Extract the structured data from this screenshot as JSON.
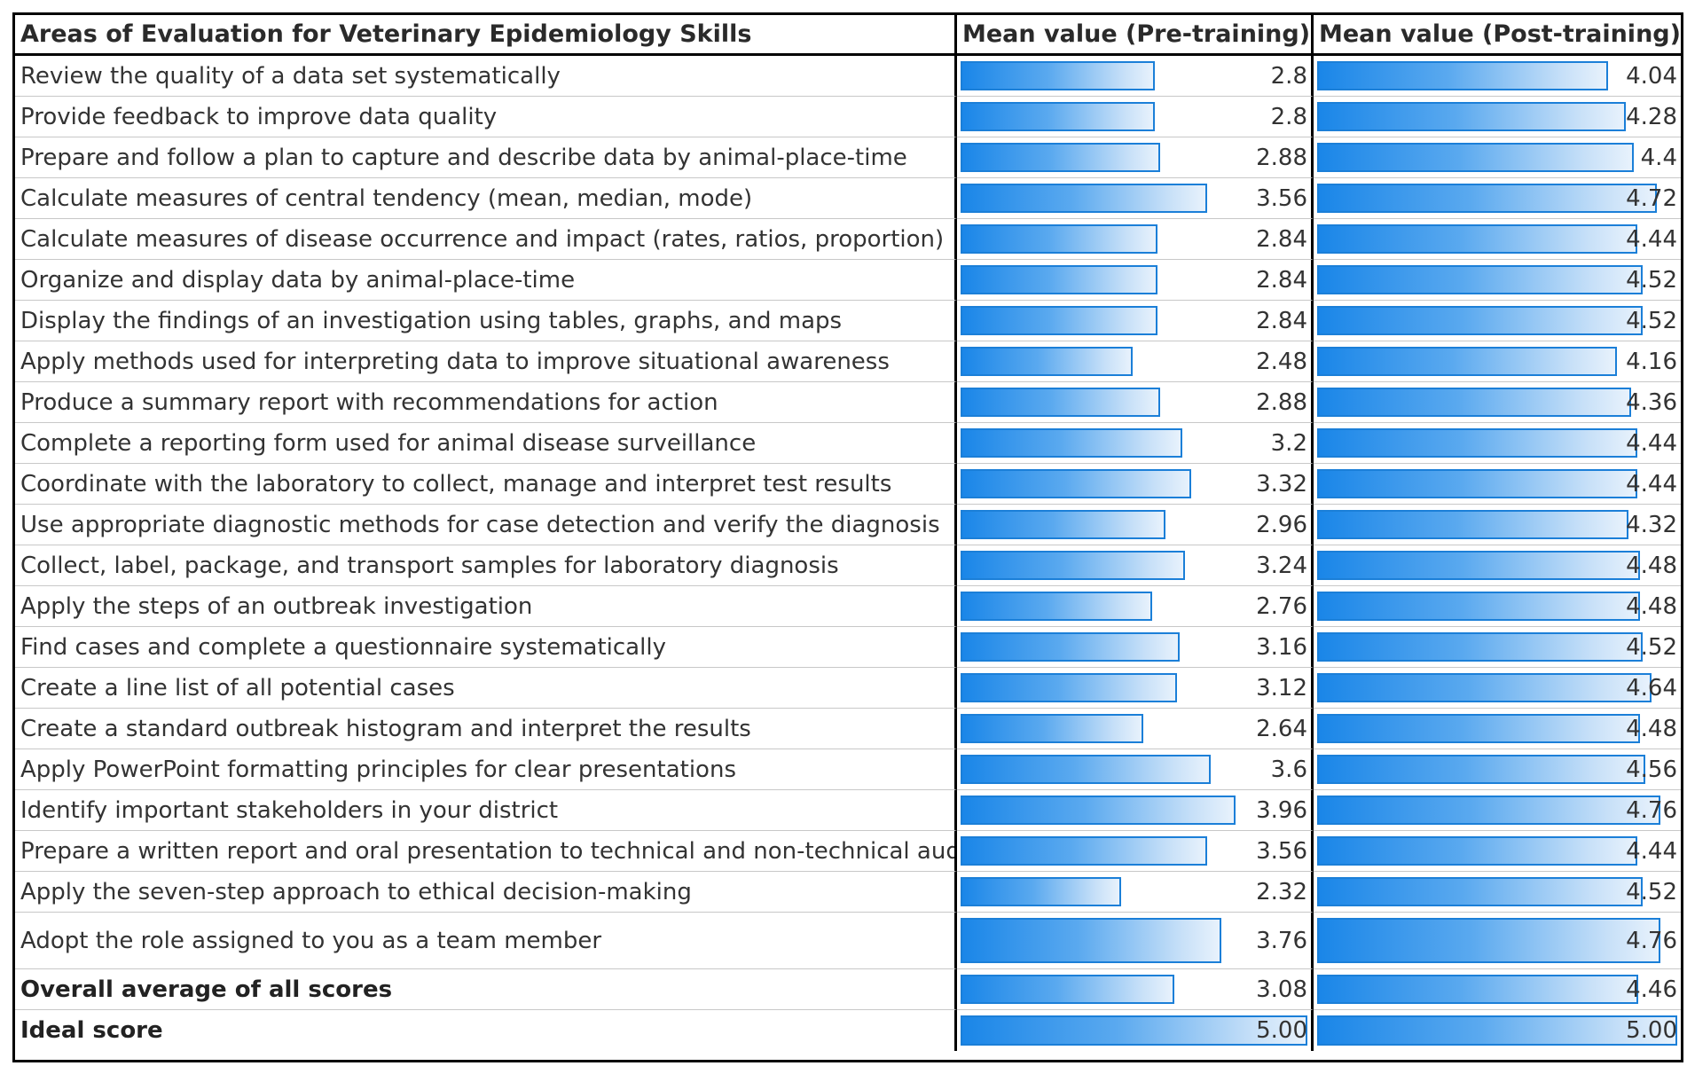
{
  "table": {
    "headers": {
      "area": "Areas of Evaluation for Veterinary Epidemiology Skills",
      "pre": "Mean value (Pre-training)",
      "post": "Mean value (Post-training)"
    }
  },
  "chart_data": {
    "type": "table",
    "title": "Areas of Evaluation for Veterinary Epidemiology Skills",
    "value_range": [
      0,
      5
    ],
    "columns": [
      "Mean value (Pre-training)",
      "Mean value (Post-training)"
    ],
    "rows": [
      {
        "label": "Review the quality of a data set systematically",
        "pre": 2.8,
        "pre_text": "2.8",
        "post": 4.04,
        "post_text": "4.04"
      },
      {
        "label": "Provide feedback to improve data quality",
        "pre": 2.8,
        "pre_text": "2.8",
        "post": 4.28,
        "post_text": "4.28"
      },
      {
        "label": "Prepare and follow a plan to capture and describe data by animal-place-time",
        "pre": 2.88,
        "pre_text": "2.88",
        "post": 4.4,
        "post_text": "4.4"
      },
      {
        "label": "Calculate measures of central tendency (mean, median, mode)",
        "pre": 3.56,
        "pre_text": "3.56",
        "post": 4.72,
        "post_text": "4.72"
      },
      {
        "label": "Calculate measures of disease occurrence and impact (rates, ratios, proportion)",
        "pre": 2.84,
        "pre_text": "2.84",
        "post": 4.44,
        "post_text": "4.44"
      },
      {
        "label": "Organize and display data by animal-place-time",
        "pre": 2.84,
        "pre_text": "2.84",
        "post": 4.52,
        "post_text": "4.52"
      },
      {
        "label": "Display the findings of an investigation using tables, graphs, and maps",
        "pre": 2.84,
        "pre_text": "2.84",
        "post": 4.52,
        "post_text": "4.52"
      },
      {
        "label": "Apply methods used for interpreting data to improve situational awareness",
        "pre": 2.48,
        "pre_text": "2.48",
        "post": 4.16,
        "post_text": "4.16"
      },
      {
        "label": "Produce a summary report with recommendations for action",
        "pre": 2.88,
        "pre_text": "2.88",
        "post": 4.36,
        "post_text": "4.36"
      },
      {
        "label": "Complete a reporting form used for animal disease surveillance",
        "pre": 3.2,
        "pre_text": "3.2",
        "post": 4.44,
        "post_text": "4.44"
      },
      {
        "label": "Coordinate with the laboratory to collect, manage and interpret test results",
        "pre": 3.32,
        "pre_text": "3.32",
        "post": 4.44,
        "post_text": "4.44"
      },
      {
        "label": "Use appropriate diagnostic methods for case detection and verify the diagnosis",
        "pre": 2.96,
        "pre_text": "2.96",
        "post": 4.32,
        "post_text": "4.32"
      },
      {
        "label": "Collect, label, package, and transport samples for laboratory diagnosis",
        "pre": 3.24,
        "pre_text": "3.24",
        "post": 4.48,
        "post_text": "4.48"
      },
      {
        "label": "Apply the steps of an outbreak investigation",
        "pre": 2.76,
        "pre_text": "2.76",
        "post": 4.48,
        "post_text": "4.48"
      },
      {
        "label": "Find cases and complete a questionnaire systematically",
        "pre": 3.16,
        "pre_text": "3.16",
        "post": 4.52,
        "post_text": "4.52"
      },
      {
        "label": "Create a line list of all potential cases",
        "pre": 3.12,
        "pre_text": "3.12",
        "post": 4.64,
        "post_text": "4.64"
      },
      {
        "label": "Create a standard outbreak histogram and interpret the results",
        "pre": 2.64,
        "pre_text": "2.64",
        "post": 4.48,
        "post_text": "4.48"
      },
      {
        "label": "Apply PowerPoint formatting principles for clear presentations",
        "pre": 3.6,
        "pre_text": "3.6",
        "post": 4.56,
        "post_text": "4.56"
      },
      {
        "label": "Identify important stakeholders in your district",
        "pre": 3.96,
        "pre_text": "3.96",
        "post": 4.76,
        "post_text": "4.76"
      },
      {
        "label": "Prepare a written report and oral presentation to technical and non-technical audiences",
        "pre": 3.56,
        "pre_text": "3.56",
        "post": 4.44,
        "post_text": "4.44"
      },
      {
        "label": "Apply the seven-step approach to ethical decision-making",
        "pre": 2.32,
        "pre_text": "2.32",
        "post": 4.52,
        "post_text": "4.52"
      },
      {
        "label": "Adopt the role assigned to you as a team member",
        "pre": 3.76,
        "pre_text": "3.76",
        "post": 4.76,
        "post_text": "4.76"
      },
      {
        "label": "Overall average of all scores",
        "pre": 3.08,
        "pre_text": "3.08",
        "post": 4.46,
        "post_text": "4.46",
        "bold": true
      },
      {
        "label": "Ideal score",
        "pre": 5.0,
        "pre_text": "5.00",
        "post": 5.0,
        "post_text": "5.00",
        "bold": true
      }
    ]
  },
  "colors": {
    "bar_fill": "#1a86e8",
    "bar_border": "#1b7fd8",
    "grid": "#c8c8c8",
    "frame": "#000000"
  }
}
